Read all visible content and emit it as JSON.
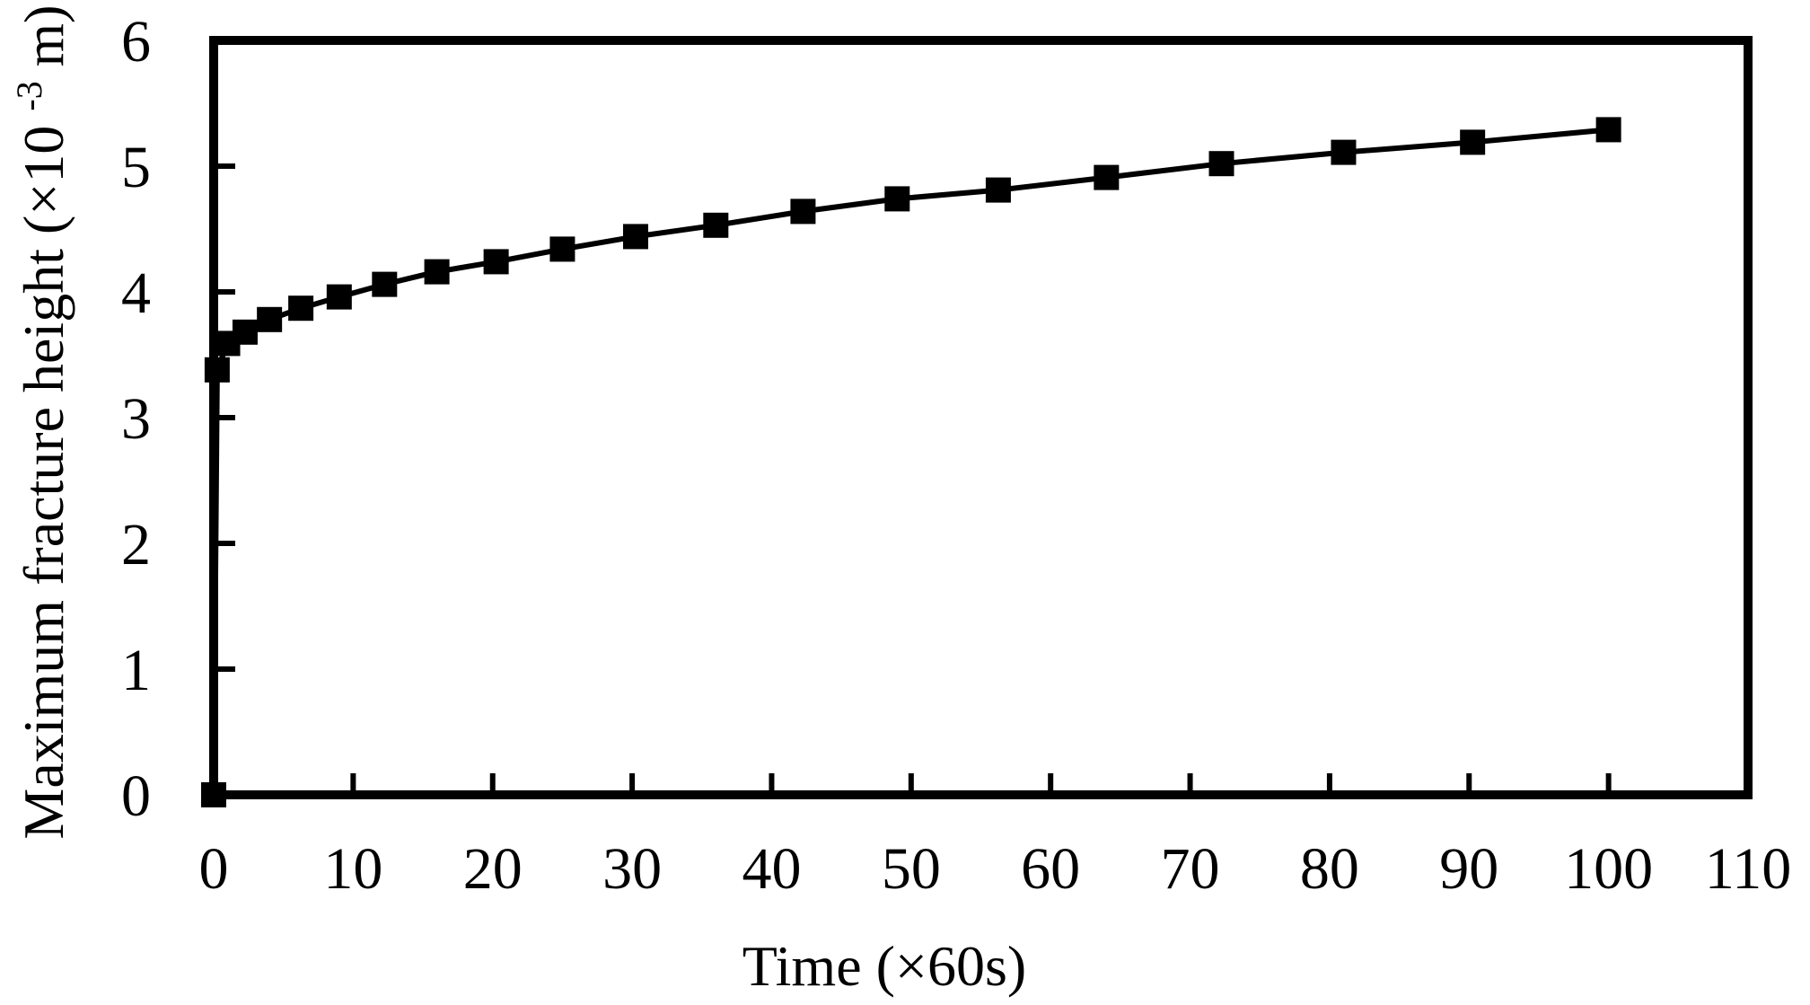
{
  "chart_data": {
    "type": "line",
    "title": "",
    "xlabel": "Time (×60s)",
    "ylabel": "Maximum fracture height (×10⁻³m)",
    "ylabel_parts": {
      "main": "Maximum fracture height (×10",
      "sup": "-3",
      "end": "m)"
    },
    "x": [
      0,
      0.25,
      1,
      2.25,
      4,
      6.25,
      9,
      12.25,
      16,
      20.25,
      25,
      30.25,
      36,
      42.25,
      49,
      56.25,
      64,
      72.25,
      81,
      90.25,
      100
    ],
    "y": [
      0,
      3.38,
      3.59,
      3.68,
      3.78,
      3.87,
      3.96,
      4.06,
      4.16,
      4.24,
      4.34,
      4.44,
      4.53,
      4.64,
      4.74,
      4.81,
      4.91,
      5.02,
      5.11,
      5.19,
      5.29
    ],
    "xlim": [
      0,
      110
    ],
    "ylim": [
      0,
      6
    ],
    "x_ticks": [
      0,
      10,
      20,
      30,
      40,
      50,
      60,
      70,
      80,
      90,
      100,
      110
    ],
    "y_ticks": [
      0,
      1,
      2,
      3,
      4,
      5,
      6
    ],
    "marker": "filled-square",
    "marker_size_px": 28,
    "line_color": "#000000",
    "marker_color": "#000000",
    "ink_color": "#000000",
    "background_color": "#ffffff",
    "grid": false,
    "legend": null
  }
}
